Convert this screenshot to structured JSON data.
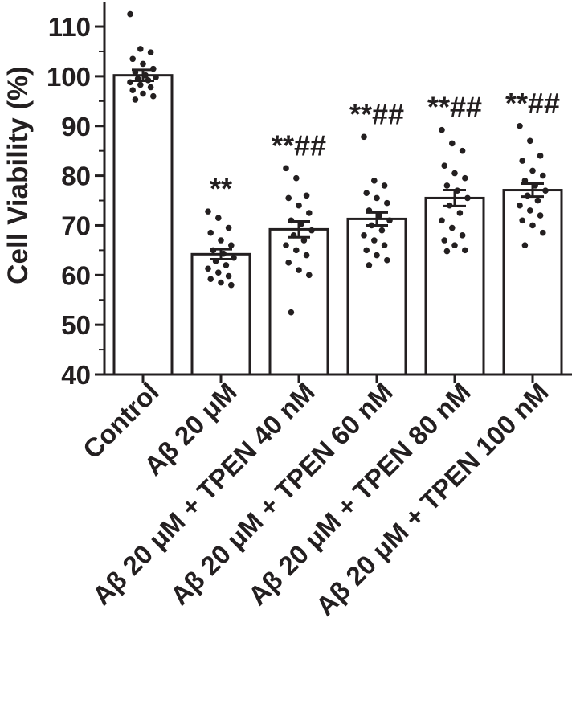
{
  "chart_data": {
    "type": "bar",
    "ylabel": "Cell Viability (%)",
    "ylim": [
      40,
      115
    ],
    "yticks": [
      40,
      50,
      60,
      70,
      80,
      90,
      100,
      110
    ],
    "categories": [
      "Control",
      "Aβ 20 μM",
      "Aβ 20 μM + TPEN 40 nM",
      "Aβ 20 μM + TPEN 60 nM",
      "Aβ 20 μM + TPEN 80 nM",
      "Aβ 20 μM + TPEN 100 nM"
    ],
    "values": [
      100.2,
      64.2,
      69.2,
      71.3,
      75.5,
      77.1
    ],
    "error": [
      1.1,
      1.0,
      1.6,
      1.3,
      1.6,
      1.3
    ],
    "annotations": [
      "",
      "**",
      "**##",
      "**##",
      "**##",
      "**##"
    ],
    "points": [
      [
        112.5,
        105.5,
        104.8,
        103.5,
        102.5,
        101.5,
        100.8,
        100.2,
        99.8,
        99.5,
        99.2,
        98.8,
        98.3,
        97.8,
        97.2,
        96.5,
        96.0,
        95.3
      ],
      [
        72.8,
        71.5,
        69.5,
        68.5,
        67.0,
        66.0,
        65.0,
        64.3,
        63.5,
        62.8,
        62.0,
        61.3,
        60.5,
        59.8,
        59.2,
        58.5,
        58.0
      ],
      [
        81.5,
        79.5,
        76.0,
        75.5,
        74.0,
        72.5,
        71.0,
        70.3,
        69.0,
        68.0,
        67.0,
        66.0,
        65.0,
        64.0,
        62.5,
        61.0,
        60.0,
        52.5
      ],
      [
        87.8,
        79.0,
        78.0,
        76.5,
        75.5,
        74.5,
        73.0,
        72.0,
        71.0,
        70.0,
        69.0,
        68.0,
        67.0,
        66.0,
        65.0,
        64.0,
        63.0,
        62.0
      ],
      [
        89.2,
        86.5,
        85.0,
        82.0,
        80.5,
        79.5,
        78.0,
        77.0,
        75.5,
        74.0,
        72.5,
        71.0,
        69.5,
        68.0,
        67.0,
        66.0,
        65.0,
        64.8
      ],
      [
        90.0,
        87.0,
        84.0,
        83.0,
        81.0,
        80.0,
        79.0,
        78.0,
        77.0,
        76.0,
        75.0,
        74.0,
        73.0,
        72.0,
        71.0,
        70.0,
        68.5,
        66.0
      ]
    ]
  }
}
